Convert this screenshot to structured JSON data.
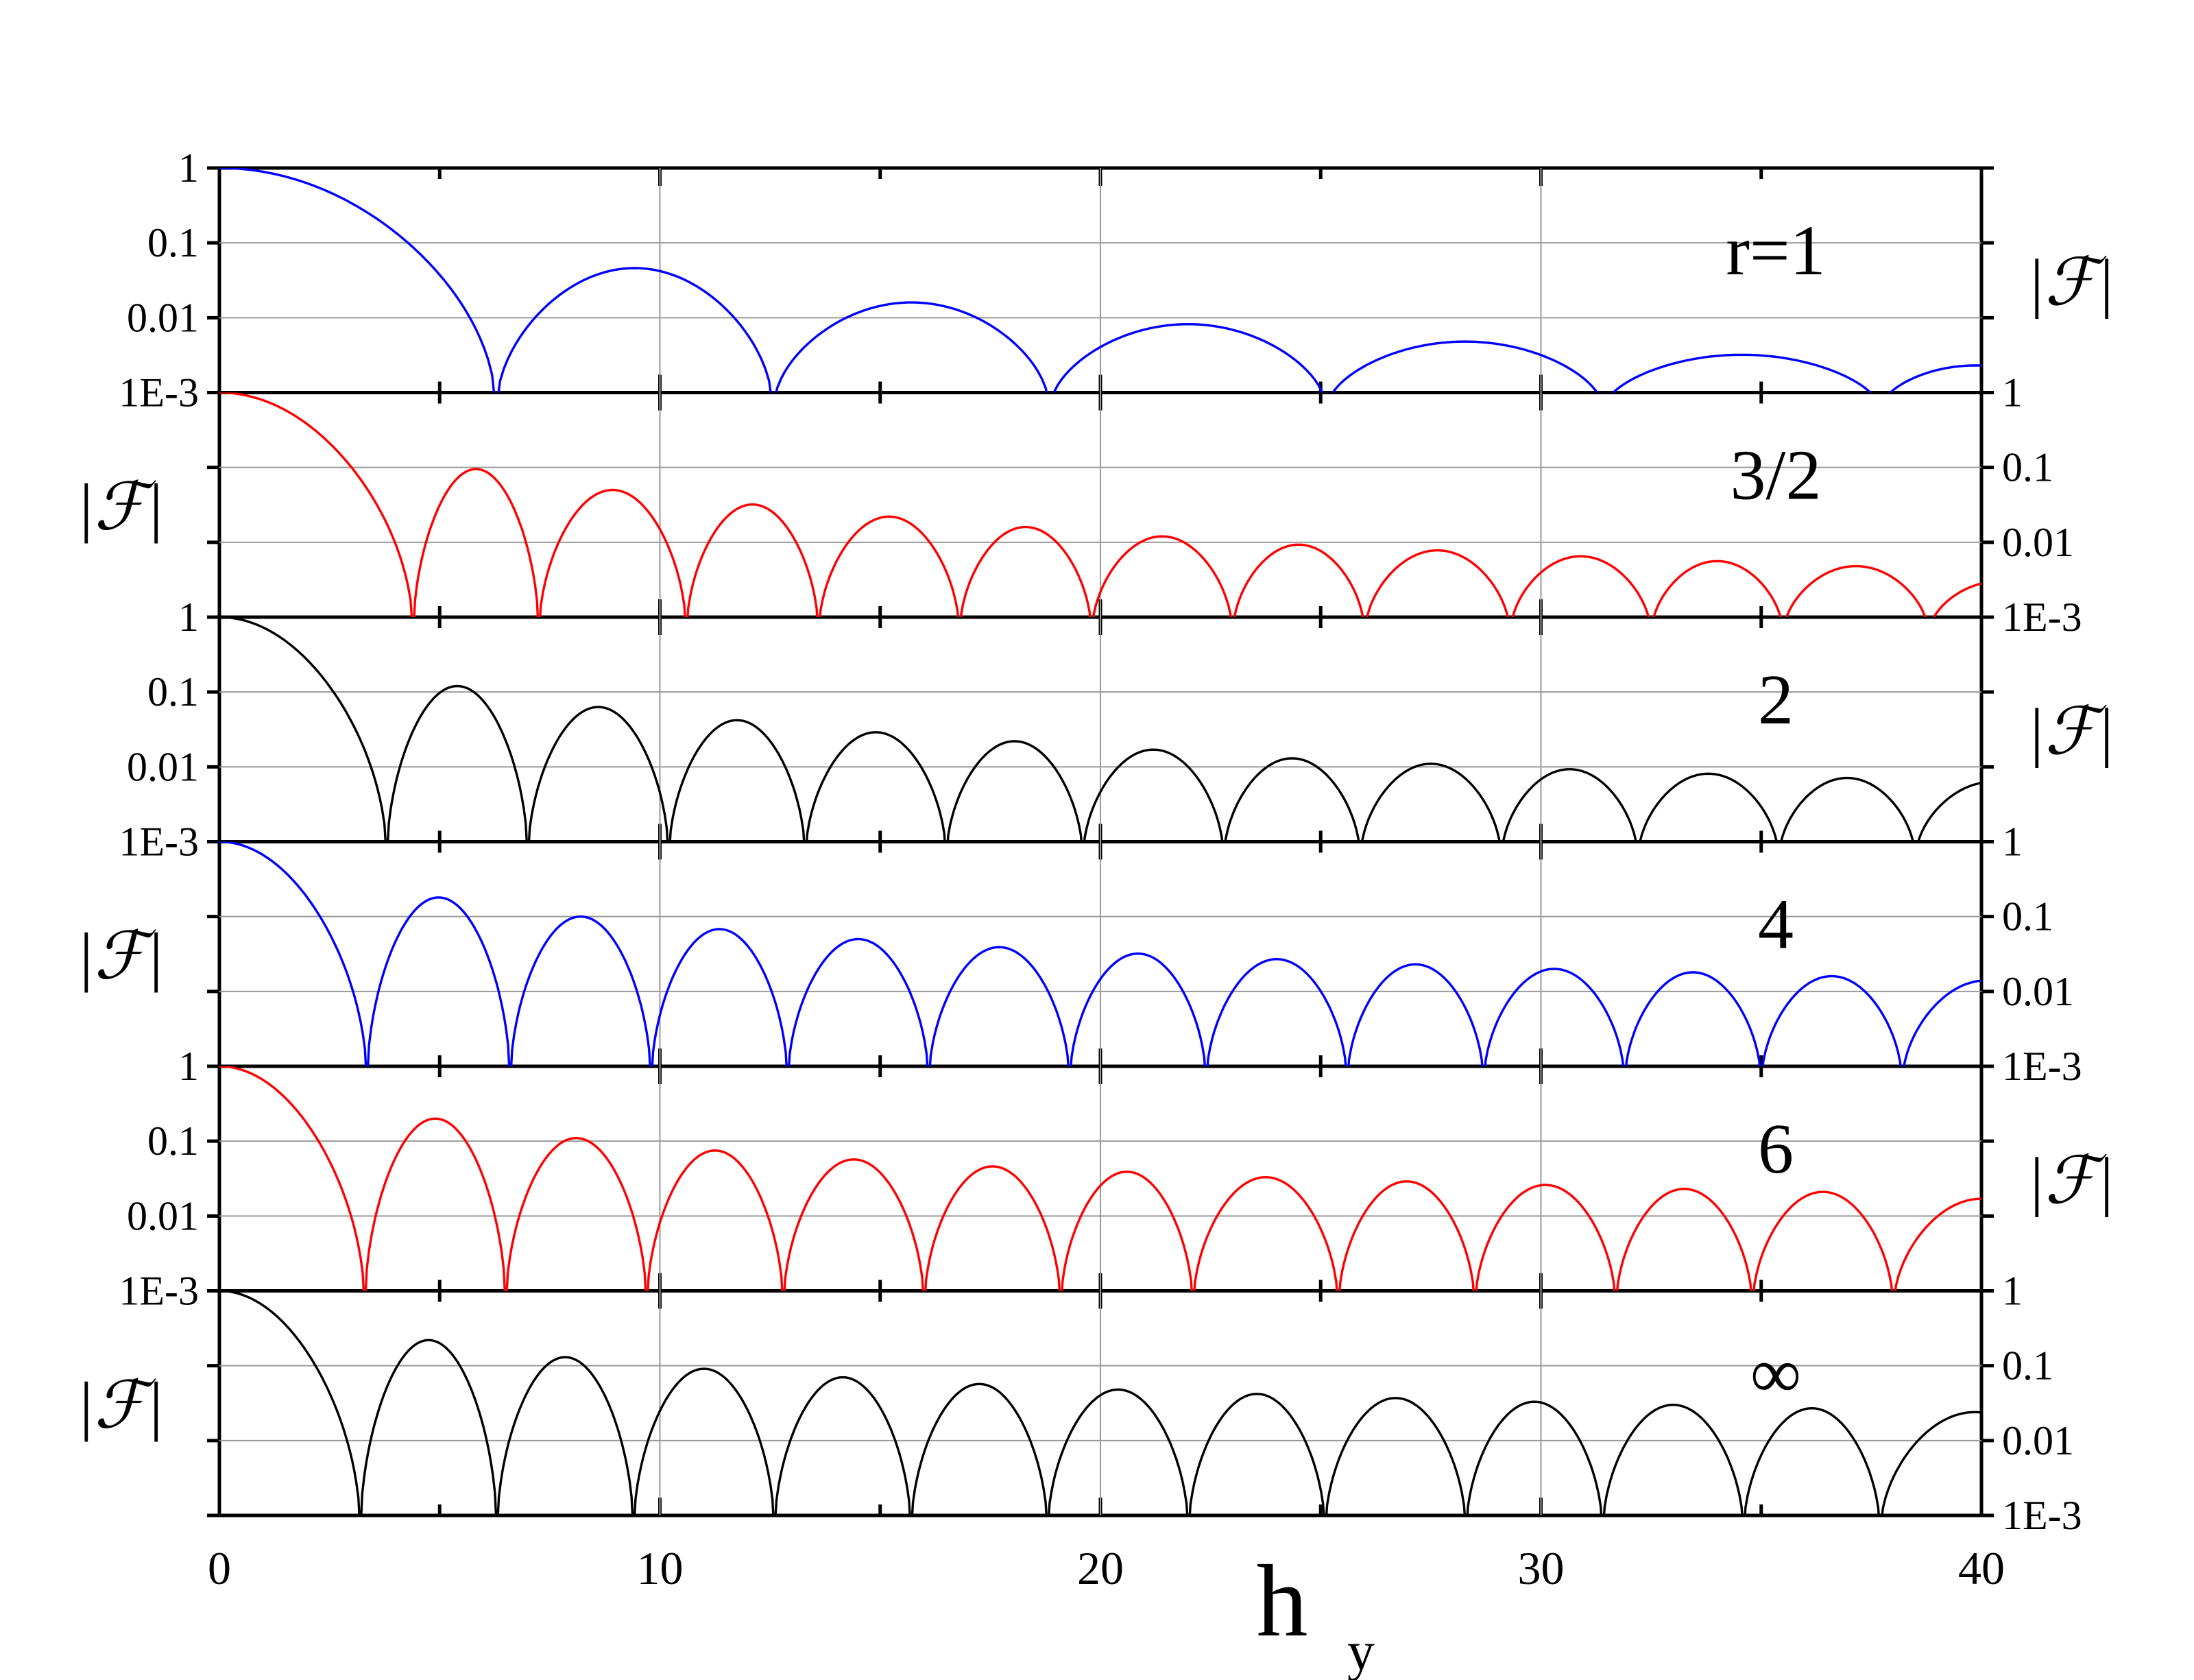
{
  "chart_data": {
    "type": "line",
    "title": "",
    "xlabel": "h",
    "xlabel_subscript": "y",
    "ylabel": "|ℱ|",
    "x_range": [
      0,
      40
    ],
    "x_ticks": [
      0,
      10,
      20,
      30,
      40
    ],
    "x_tick_labels": [
      "0",
      "10",
      "20",
      "30",
      "40"
    ],
    "y_scale": "log",
    "ylim": [
      0.001,
      1
    ],
    "y_tick_labels": [
      "1E-3",
      "0.01",
      "0.1",
      "1"
    ],
    "grid": true,
    "panels": [
      {
        "label": "r=1",
        "color": "#0000ff",
        "y_tick_side": "left",
        "ylabel_side": "right",
        "zeros": [
          6.28,
          12.57,
          18.85,
          25.13,
          31.42,
          37.7
        ],
        "peaks": [
          [
            0,
            1
          ],
          [
            9.0,
            0.046
          ],
          [
            15.4,
            0.016
          ],
          [
            21.9,
            0.0082
          ],
          [
            28.1,
            0.0048
          ],
          [
            34.5,
            0.0032
          ],
          [
            40.5,
            0.0023
          ]
        ]
      },
      {
        "label": "3/2",
        "color": "#ff0000",
        "y_tick_side": "right",
        "ylabel_side": "left",
        "zeros": [
          4.4,
          7.25,
          10.6,
          13.6,
          16.8,
          19.8,
          23.0,
          26.0,
          29.3,
          32.5,
          35.5,
          38.8
        ],
        "peaks": [
          [
            0,
            1
          ],
          [
            5.4,
            0.095
          ],
          [
            8.6,
            0.05
          ],
          [
            11.9,
            0.032
          ],
          [
            15.0,
            0.022
          ],
          [
            18.3,
            0.016
          ],
          [
            21.4,
            0.012
          ],
          [
            24.5,
            0.0093
          ],
          [
            27.6,
            0.0078
          ],
          [
            30.8,
            0.0065
          ],
          [
            34.0,
            0.0056
          ],
          [
            37.2,
            0.0048
          ],
          [
            40.2,
            0.003
          ]
        ]
      },
      {
        "label": "2",
        "color": "#000000",
        "y_tick_side": "left",
        "ylabel_side": "right",
        "zeros": [
          3.8,
          7.0,
          10.2,
          13.3,
          16.5,
          19.6,
          22.8,
          25.9,
          29.1,
          32.2,
          35.4,
          38.5
        ],
        "peaks": [
          [
            0,
            1
          ],
          [
            5.2,
            0.12
          ],
          [
            8.4,
            0.063
          ],
          [
            11.6,
            0.042
          ],
          [
            14.8,
            0.029
          ],
          [
            17.9,
            0.022
          ],
          [
            21.1,
            0.017
          ],
          [
            24.2,
            0.013
          ],
          [
            27.4,
            0.011
          ],
          [
            30.5,
            0.0093
          ],
          [
            33.7,
            0.0081
          ],
          [
            36.8,
            0.0071
          ],
          [
            40.0,
            0.0063
          ]
        ]
      },
      {
        "label": "4",
        "color": "#0000ff",
        "y_tick_side": "right",
        "ylabel_side": "left",
        "zeros": [
          3.35,
          6.6,
          9.8,
          12.9,
          16.1,
          19.3,
          22.4,
          25.6,
          28.7,
          31.9,
          35.0,
          38.2
        ],
        "peaks": [
          [
            0,
            1
          ],
          [
            4.9,
            0.18
          ],
          [
            8.1,
            0.1
          ],
          [
            11.3,
            0.068
          ],
          [
            14.5,
            0.05
          ],
          [
            17.7,
            0.039
          ],
          [
            20.8,
            0.032
          ],
          [
            24.0,
            0.027
          ],
          [
            27.1,
            0.023
          ],
          [
            30.3,
            0.02
          ],
          [
            33.4,
            0.018
          ],
          [
            36.6,
            0.016
          ],
          [
            40.1,
            0.014
          ]
        ]
      },
      {
        "label": "6",
        "color": "#ff0000",
        "y_tick_side": "left",
        "ylabel_side": "right",
        "zeros": [
          3.3,
          6.5,
          9.7,
          12.8,
          16.0,
          19.1,
          22.1,
          25.4,
          28.5,
          31.7,
          34.8,
          38.0
        ],
        "peaks": [
          [
            0,
            1
          ],
          [
            4.7,
            0.2
          ],
          [
            7.9,
            0.11
          ],
          [
            11.1,
            0.075
          ],
          [
            14.3,
            0.057
          ],
          [
            17.4,
            0.046
          ],
          [
            20.6,
            0.039
          ],
          [
            23.8,
            0.033
          ],
          [
            26.9,
            0.029
          ],
          [
            30.1,
            0.026
          ],
          [
            33.2,
            0.023
          ],
          [
            36.4,
            0.021
          ],
          [
            39.8,
            0.017
          ]
        ]
      },
      {
        "label": "∞",
        "color": "#000000",
        "y_tick_side": "right",
        "ylabel_side": "left",
        "zeros": [
          3.2,
          6.3,
          9.4,
          12.6,
          15.7,
          18.8,
          22.0,
          25.1,
          28.3,
          31.4,
          34.6,
          37.7
        ],
        "peaks": [
          [
            0,
            1
          ],
          [
            4.5,
            0.22
          ],
          [
            7.7,
            0.13
          ],
          [
            10.9,
            0.091
          ],
          [
            14.1,
            0.07
          ],
          [
            17.2,
            0.057
          ],
          [
            20.4,
            0.048
          ],
          [
            23.5,
            0.042
          ],
          [
            26.7,
            0.037
          ],
          [
            29.8,
            0.033
          ],
          [
            33.0,
            0.03
          ],
          [
            36.1,
            0.027
          ],
          [
            39.8,
            0.024
          ]
        ]
      }
    ]
  }
}
